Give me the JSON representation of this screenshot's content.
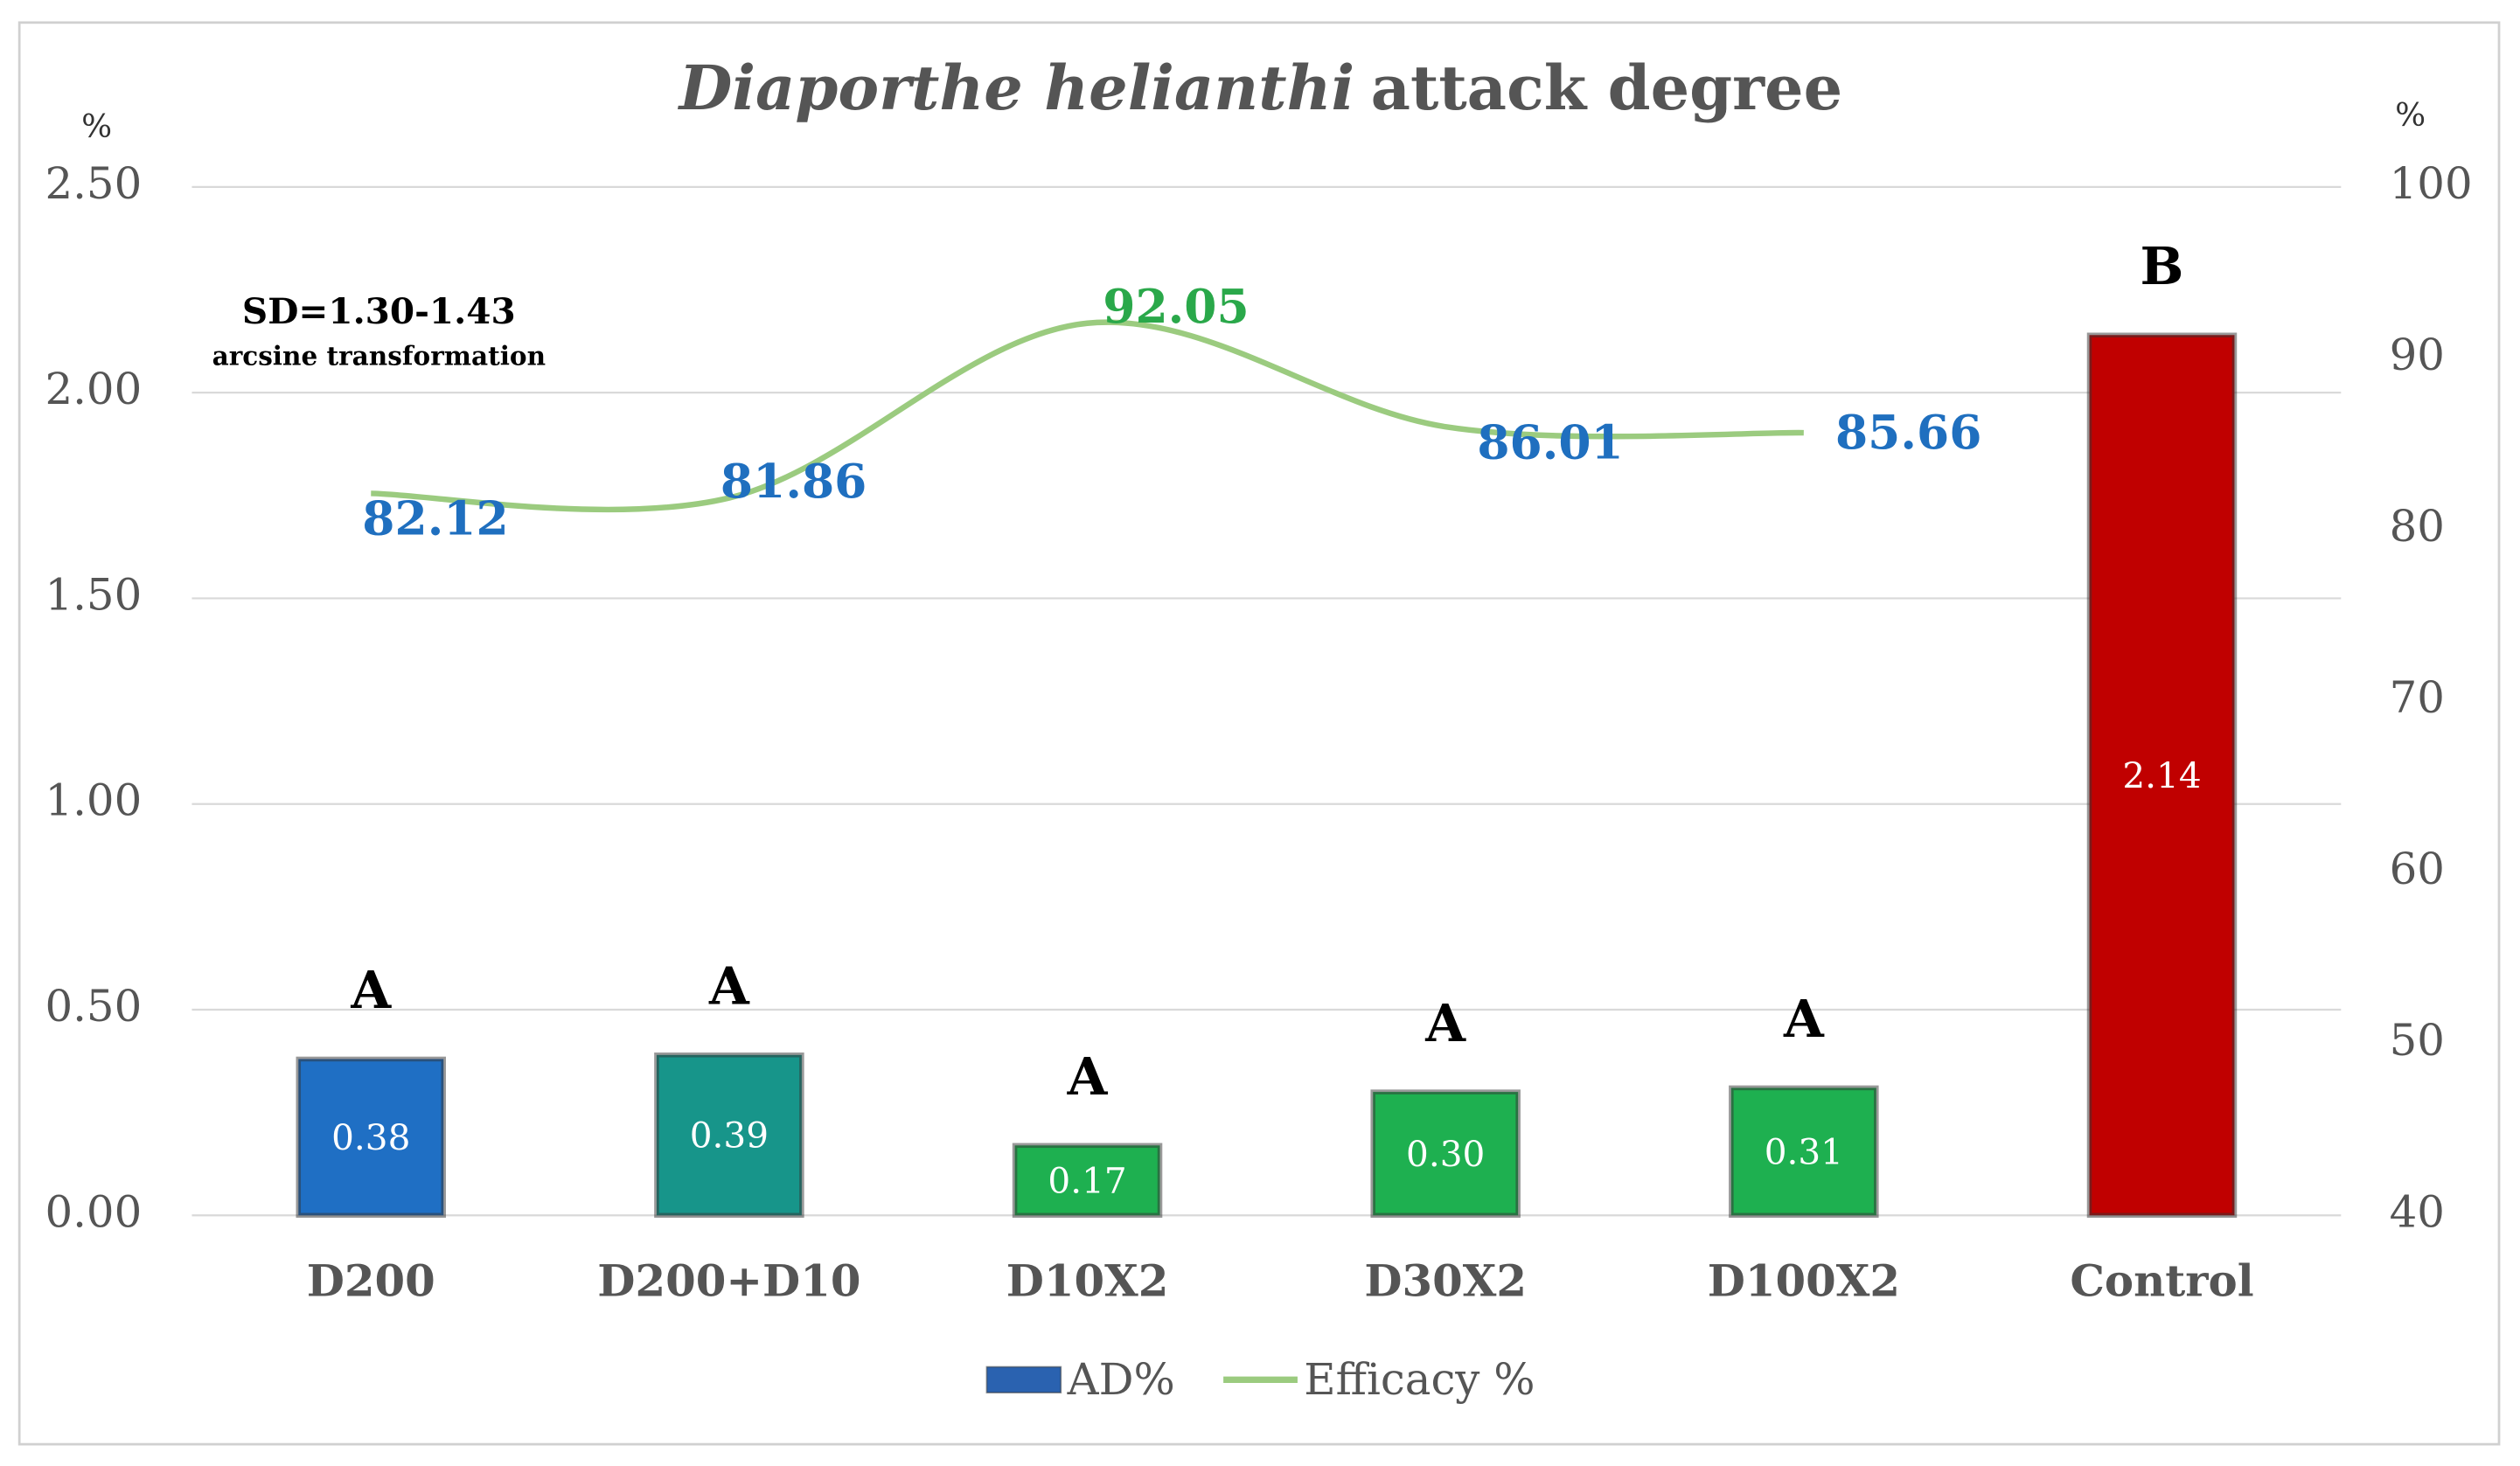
{
  "chart_data": {
    "type": "bar",
    "title_parts": [
      {
        "text": "Diaporthe helianthi",
        "italic": true
      },
      {
        "text": "attack degree",
        "italic": false
      }
    ],
    "ylabel": "%",
    "y2label": "%",
    "annotations": [
      "SD=1.30-1.43",
      "arcsine transformation"
    ],
    "categories": [
      "D200",
      "D200+D10",
      "D10X2",
      "D30X2",
      "D100X2",
      "Control"
    ],
    "significance": [
      "A",
      "A",
      "A",
      "A",
      "A",
      "B"
    ],
    "series": [
      {
        "name": "AD%",
        "type": "bar",
        "colors": [
          "#1f6fc4",
          "#17958a",
          "#1eb050",
          "#1eb050",
          "#1eb050",
          "#c00000"
        ],
        "color": "#2a62b0",
        "values": [
          0.38,
          0.39,
          0.17,
          0.3,
          0.31,
          2.14
        ],
        "value_labels": [
          "0.38",
          "0.39",
          "0.17",
          "0.30",
          "0.31",
          "2.14"
        ]
      },
      {
        "name": "Efficacy %",
        "type": "line",
        "axis": "y2",
        "color": "#9bcb7f",
        "label_colors": [
          "#1f6fbf",
          "#1f6fbf",
          "#2aa84a",
          "#1f6fbf",
          "#1f6fbf",
          null
        ],
        "values": [
          82.12,
          81.86,
          92.05,
          86.01,
          85.66,
          null
        ]
      }
    ],
    "ylim": [
      0,
      2.5
    ],
    "yticks": [
      {
        "value": 0,
        "label": "0.00"
      },
      {
        "value": 0.5,
        "label": "0.50"
      },
      {
        "value": 1,
        "label": "1.00"
      },
      {
        "value": 1.5,
        "label": "1.50"
      },
      {
        "value": 2,
        "label": "2.00"
      },
      {
        "value": 2.5,
        "label": "2.50"
      }
    ],
    "y2lim": [
      40,
      100
    ],
    "y2ticks": [
      40,
      50,
      60,
      70,
      80,
      90,
      100
    ],
    "grid": true,
    "legend": "bottom"
  }
}
